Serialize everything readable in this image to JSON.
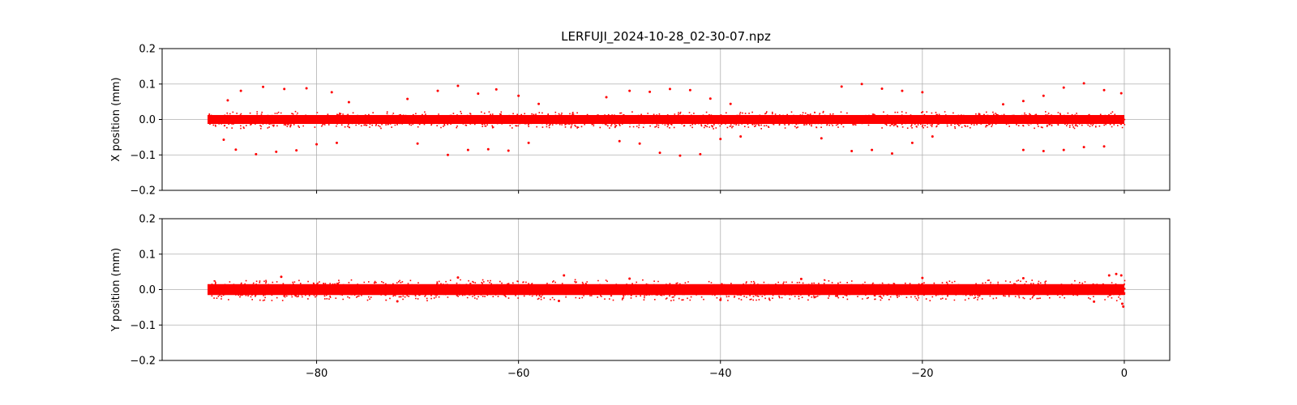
{
  "chart_data": [
    {
      "type": "scatter",
      "title": "LERFUJI_2024-10-28_02-30-07.npz",
      "xlabel": "",
      "ylabel": "X position (mm)",
      "xlim": [
        -95.3,
        4.5
      ],
      "ylim": [
        -0.2,
        0.2
      ],
      "xticks": [
        -80,
        -60,
        -40,
        -20,
        0
      ],
      "xtick_labels": [
        "",
        "",
        "",
        "",
        ""
      ],
      "yticks": [
        -0.2,
        -0.1,
        0.0,
        0.1,
        0.2
      ],
      "ytick_labels": [
        "−0.2",
        "−0.1",
        "0.0",
        "0.1",
        "0.2"
      ],
      "grid": true,
      "color": "#ff0000",
      "band": {
        "x_range": [
          -90.8,
          0
        ],
        "center": 0.0,
        "half_width": 0.018
      },
      "outliers": [
        [
          -88.8,
          0.054
        ],
        [
          -87.5,
          0.081
        ],
        [
          -85.3,
          0.092
        ],
        [
          -83.2,
          0.086
        ],
        [
          -81.0,
          0.088
        ],
        [
          -78.5,
          0.077
        ],
        [
          -76.8,
          0.049
        ],
        [
          -71.0,
          0.058
        ],
        [
          -68.0,
          0.081
        ],
        [
          -66.0,
          0.095
        ],
        [
          -64.0,
          0.073
        ],
        [
          -62.2,
          0.085
        ],
        [
          -60.0,
          0.067
        ],
        [
          -58.0,
          0.044
        ],
        [
          -51.3,
          0.063
        ],
        [
          -49.0,
          0.081
        ],
        [
          -47.0,
          0.078
        ],
        [
          -45.0,
          0.086
        ],
        [
          -43.0,
          0.083
        ],
        [
          -41.0,
          0.059
        ],
        [
          -39.0,
          0.044
        ],
        [
          -28.0,
          0.093
        ],
        [
          -26.0,
          0.1
        ],
        [
          -24.0,
          0.087
        ],
        [
          -22.0,
          0.081
        ],
        [
          -20.0,
          0.077
        ],
        [
          -12.0,
          0.043
        ],
        [
          -10.0,
          0.052
        ],
        [
          -8.0,
          0.067
        ],
        [
          -6.0,
          0.09
        ],
        [
          -4.0,
          0.102
        ],
        [
          -2.0,
          0.083
        ],
        [
          -0.3,
          0.074
        ],
        [
          -89.2,
          -0.057
        ],
        [
          -88.0,
          -0.085
        ],
        [
          -86.0,
          -0.098
        ],
        [
          -84.0,
          -0.091
        ],
        [
          -82.0,
          -0.087
        ],
        [
          -80.0,
          -0.07
        ],
        [
          -78.0,
          -0.066
        ],
        [
          -70.0,
          -0.068
        ],
        [
          -67.0,
          -0.1
        ],
        [
          -65.0,
          -0.086
        ],
        [
          -63.0,
          -0.084
        ],
        [
          -61.0,
          -0.088
        ],
        [
          -59.0,
          -0.066
        ],
        [
          -50.0,
          -0.061
        ],
        [
          -48.0,
          -0.068
        ],
        [
          -46.0,
          -0.094
        ],
        [
          -44.0,
          -0.102
        ],
        [
          -42.0,
          -0.098
        ],
        [
          -40.0,
          -0.055
        ],
        [
          -38.0,
          -0.048
        ],
        [
          -30.0,
          -0.053
        ],
        [
          -27.0,
          -0.089
        ],
        [
          -25.0,
          -0.086
        ],
        [
          -23.0,
          -0.096
        ],
        [
          -21.0,
          -0.066
        ],
        [
          -19.0,
          -0.048
        ],
        [
          -10.0,
          -0.086
        ],
        [
          -8.0,
          -0.089
        ],
        [
          -6.0,
          -0.086
        ],
        [
          -4.0,
          -0.078
        ],
        [
          -2.0,
          -0.076
        ]
      ]
    },
    {
      "type": "scatter",
      "title": "",
      "xlabel": "",
      "ylabel": "Y position (mm)",
      "xlim": [
        -95.3,
        4.5
      ],
      "ylim": [
        -0.2,
        0.2
      ],
      "xticks": [
        -80,
        -60,
        -40,
        -20,
        0
      ],
      "xtick_labels": [
        "−80",
        "−60",
        "−40",
        "−20",
        "0"
      ],
      "yticks": [
        -0.2,
        -0.1,
        0.0,
        0.1,
        0.2
      ],
      "ytick_labels": [
        "−0.2",
        "−0.1",
        "0.0",
        "0.1",
        "0.2"
      ],
      "grid": true,
      "color": "#ff0000",
      "band": {
        "x_range": [
          -90.8,
          0
        ],
        "center": 0.0,
        "half_width": 0.022
      },
      "outliers": [
        [
          -83.5,
          0.036
        ],
        [
          -66.0,
          0.034
        ],
        [
          -55.5,
          0.04
        ],
        [
          -49.0,
          0.031
        ],
        [
          -32.0,
          0.03
        ],
        [
          -20.0,
          0.033
        ],
        [
          -10.0,
          0.032
        ],
        [
          -1.5,
          0.04
        ],
        [
          -0.8,
          0.044
        ],
        [
          -0.3,
          0.04
        ],
        [
          -72.0,
          -0.033
        ],
        [
          -56.0,
          -0.032
        ],
        [
          -40.0,
          -0.029
        ],
        [
          -3.0,
          -0.034
        ],
        [
          -0.1,
          -0.048
        ],
        [
          -0.2,
          -0.04
        ]
      ]
    }
  ]
}
